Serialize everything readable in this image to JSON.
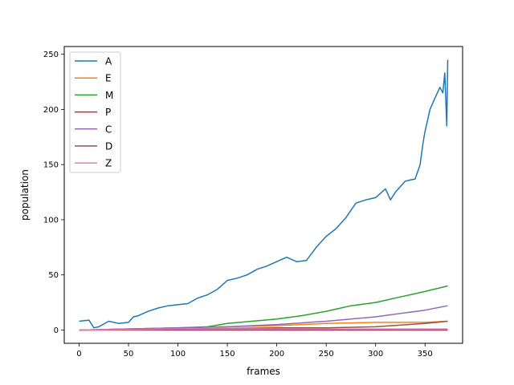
{
  "chart_data": {
    "type": "line",
    "title": "",
    "xlabel": "frames",
    "ylabel": "population",
    "xlim": [
      -15,
      388
    ],
    "ylim": [
      -12,
      257
    ],
    "xticks": [
      0,
      50,
      100,
      150,
      200,
      250,
      300,
      350
    ],
    "yticks": [
      0,
      50,
      100,
      150,
      200,
      250
    ],
    "grid": false,
    "legend_position": "upper-left",
    "series": [
      {
        "name": "A",
        "color": "#1f77b4",
        "points": [
          [
            0,
            8
          ],
          [
            10,
            9
          ],
          [
            15,
            2
          ],
          [
            20,
            3
          ],
          [
            30,
            8
          ],
          [
            40,
            6
          ],
          [
            50,
            7
          ],
          [
            55,
            12
          ],
          [
            60,
            13
          ],
          [
            70,
            17
          ],
          [
            80,
            20
          ],
          [
            90,
            22
          ],
          [
            100,
            23
          ],
          [
            110,
            24
          ],
          [
            120,
            29
          ],
          [
            130,
            32
          ],
          [
            140,
            37
          ],
          [
            150,
            45
          ],
          [
            160,
            47
          ],
          [
            170,
            50
          ],
          [
            180,
            55
          ],
          [
            190,
            58
          ],
          [
            200,
            62
          ],
          [
            210,
            66
          ],
          [
            220,
            62
          ],
          [
            230,
            63
          ],
          [
            240,
            75
          ],
          [
            250,
            85
          ],
          [
            260,
            92
          ],
          [
            270,
            102
          ],
          [
            280,
            115
          ],
          [
            290,
            118
          ],
          [
            300,
            120
          ],
          [
            310,
            128
          ],
          [
            315,
            118
          ],
          [
            320,
            125
          ],
          [
            330,
            135
          ],
          [
            340,
            137
          ],
          [
            345,
            150
          ],
          [
            348,
            170
          ],
          [
            350,
            180
          ],
          [
            355,
            200
          ],
          [
            360,
            210
          ],
          [
            365,
            220
          ],
          [
            368,
            215
          ],
          [
            370,
            233
          ],
          [
            372,
            185
          ],
          [
            373,
            245
          ]
        ]
      },
      {
        "name": "E",
        "color": "#ff7f0e",
        "points": [
          [
            0,
            0
          ],
          [
            50,
            1
          ],
          [
            100,
            2
          ],
          [
            150,
            3
          ],
          [
            200,
            4
          ],
          [
            250,
            6
          ],
          [
            300,
            7
          ],
          [
            350,
            7
          ],
          [
            373,
            8
          ]
        ]
      },
      {
        "name": "M",
        "color": "#2ca02c",
        "points": [
          [
            0,
            0
          ],
          [
            50,
            1
          ],
          [
            100,
            2
          ],
          [
            130,
            3
          ],
          [
            150,
            6
          ],
          [
            175,
            8
          ],
          [
            200,
            10
          ],
          [
            225,
            13
          ],
          [
            250,
            17
          ],
          [
            275,
            22
          ],
          [
            300,
            25
          ],
          [
            325,
            30
          ],
          [
            350,
            35
          ],
          [
            373,
            40
          ]
        ]
      },
      {
        "name": "P",
        "color": "#d62728",
        "points": [
          [
            0,
            0
          ],
          [
            100,
            0
          ],
          [
            200,
            0
          ],
          [
            300,
            0
          ],
          [
            373,
            0
          ]
        ]
      },
      {
        "name": "C",
        "color": "#9467bd",
        "points": [
          [
            0,
            0
          ],
          [
            50,
            1
          ],
          [
            100,
            2
          ],
          [
            150,
            3
          ],
          [
            200,
            5
          ],
          [
            250,
            8
          ],
          [
            300,
            12
          ],
          [
            350,
            18
          ],
          [
            373,
            22
          ]
        ]
      },
      {
        "name": "D",
        "color": "#8c564b",
        "points": [
          [
            0,
            0
          ],
          [
            100,
            1
          ],
          [
            200,
            2
          ],
          [
            250,
            2
          ],
          [
            300,
            3
          ],
          [
            350,
            6
          ],
          [
            373,
            8
          ]
        ]
      },
      {
        "name": "Z",
        "color": "#e377c2",
        "points": [
          [
            0,
            0
          ],
          [
            100,
            1
          ],
          [
            200,
            1
          ],
          [
            300,
            1
          ],
          [
            373,
            1
          ]
        ]
      }
    ]
  }
}
